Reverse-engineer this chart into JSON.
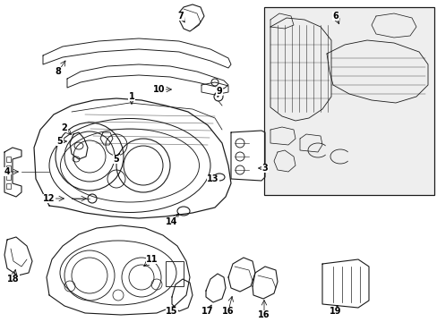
{
  "bg_color": "#ffffff",
  "line_color": "#1a1a1a",
  "fig_width": 4.89,
  "fig_height": 3.6,
  "dpi": 100,
  "label_positions": {
    "1": [
      1.38,
      2.58,
      1.25,
      2.42
    ],
    "2": [
      0.72,
      2.35,
      0.82,
      2.28
    ],
    "3": [
      2.42,
      1.82,
      2.38,
      1.92
    ],
    "4": [
      0.05,
      2.05,
      0.18,
      2.0
    ],
    "5a": [
      0.68,
      2.22,
      0.78,
      2.18
    ],
    "5b": [
      1.28,
      1.88,
      1.32,
      1.98
    ],
    "6": [
      3.72,
      3.45,
      3.72,
      3.4
    ],
    "7": [
      1.78,
      3.35,
      1.88,
      3.22
    ],
    "8": [
      0.7,
      3.1,
      0.8,
      2.98
    ],
    "9": [
      2.45,
      2.62,
      2.38,
      2.58
    ],
    "10": [
      1.82,
      2.58,
      1.98,
      2.52
    ],
    "11": [
      1.52,
      0.85,
      1.38,
      0.92
    ],
    "12": [
      0.42,
      1.68,
      0.58,
      1.68
    ],
    "13": [
      2.0,
      1.98,
      2.0,
      1.9
    ],
    "14": [
      1.8,
      1.05,
      1.8,
      1.12
    ],
    "15": [
      1.92,
      0.32,
      1.98,
      0.42
    ],
    "16a": [
      2.58,
      0.42,
      2.62,
      0.52
    ],
    "16b": [
      2.78,
      0.32,
      2.82,
      0.42
    ],
    "17": [
      2.32,
      0.42,
      2.38,
      0.5
    ],
    "18": [
      0.12,
      0.78,
      0.18,
      0.88
    ],
    "19": [
      3.6,
      0.38,
      3.6,
      0.5
    ]
  }
}
